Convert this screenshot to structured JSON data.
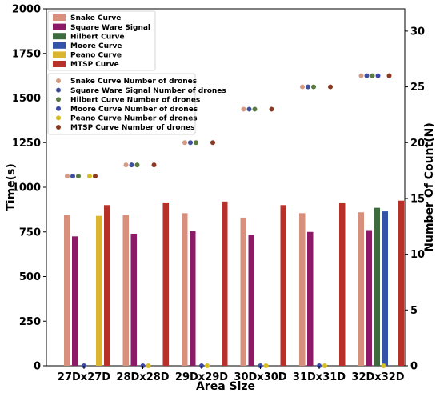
{
  "chart_data": {
    "type": "bar",
    "categories": [
      "27Dx27D",
      "28Dx28D",
      "29Dx29D",
      "30Dx30D",
      "31Dx31D",
      "32Dx32D"
    ],
    "xlabel": "Area Size",
    "ylabel": "Time(s)",
    "y2label": "Number Of Count(N)",
    "ylim": [
      0,
      2000
    ],
    "y2lim": [
      0,
      32
    ],
    "yticks": [
      0,
      250,
      500,
      750,
      1000,
      1250,
      1500,
      1750,
      2000
    ],
    "y2ticks": [
      0,
      5,
      10,
      15,
      20,
      25,
      30
    ],
    "grid": false,
    "legend_placement": "top-left",
    "series": [
      {
        "name": "Snake Curve",
        "color": "#d88f7c",
        "values": [
          845,
          845,
          855,
          830,
          855,
          860
        ]
      },
      {
        "name": "Square Ware Signal",
        "color": "#8c1a66",
        "values": [
          725,
          740,
          755,
          735,
          750,
          760
        ]
      },
      {
        "name": "Hilbert Curve",
        "color": "#3e6b3e",
        "values": [
          0,
          0,
          0,
          0,
          0,
          885
        ]
      },
      {
        "name": "Moore Curve",
        "color": "#3253a8",
        "values": [
          0,
          0,
          0,
          0,
          0,
          865
        ]
      },
      {
        "name": "Peano Curve",
        "color": "#dbb532",
        "values": [
          840,
          0,
          0,
          0,
          0,
          0
        ]
      },
      {
        "name": "MTSP Curve",
        "color": "#b8302a",
        "values": [
          900,
          915,
          920,
          900,
          915,
          925
        ]
      }
    ],
    "series_secondary": [
      {
        "name": "Snake Curve Number of drones",
        "color": "#d49a82",
        "values": [
          17,
          18,
          20,
          23,
          25,
          26
        ]
      },
      {
        "name": "Square Ware Signal Number of drones",
        "color": "#3f4f9e",
        "values": [
          17,
          18,
          20,
          23,
          25,
          26
        ]
      },
      {
        "name": "Hilbert Curve Number of drones",
        "color": "#5a7a3f",
        "values": [
          17,
          18,
          20,
          23,
          25,
          26
        ]
      },
      {
        "name": "Moore Curve Number of drones",
        "color": "#3c48a8",
        "values": [
          0,
          0,
          0,
          0,
          0,
          26
        ]
      },
      {
        "name": "Peano Curve Number of drones",
        "color": "#d8bc24",
        "values": [
          17,
          0,
          0,
          0,
          0,
          0
        ]
      },
      {
        "name": "MTSP Curve Number of drones",
        "color": "#8a3a22",
        "values": [
          17,
          18,
          20,
          23,
          25,
          26
        ]
      }
    ]
  }
}
